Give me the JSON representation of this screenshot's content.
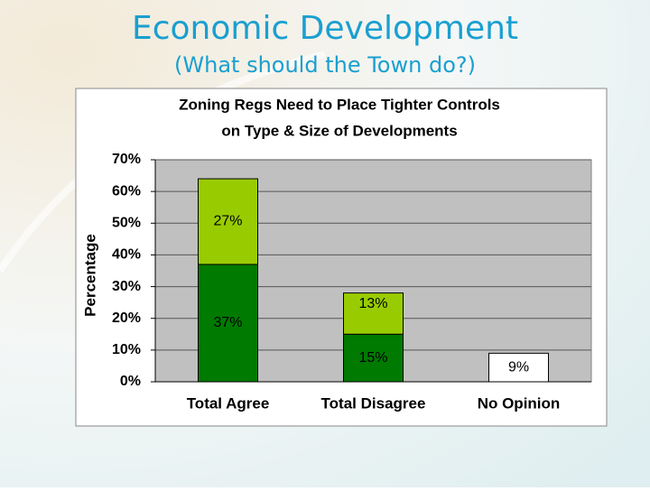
{
  "slide": {
    "title": "Economic Development",
    "subtitle": "(What should the Town do?)"
  },
  "chart_data": {
    "type": "stacked-bar",
    "title": [
      "Zoning Regs Need to Place Tighter Controls",
      "on Type & Size of Developments"
    ],
    "y_label": "Percentage",
    "categories": [
      "Total Agree",
      "Total Disagree",
      "No Opinion"
    ],
    "series": [
      {
        "color": "#007a00",
        "values": [
          37,
          15,
          null
        ],
        "value_labels": [
          "37%",
          "15%",
          null
        ]
      },
      {
        "color": "#99cc00",
        "values": [
          27,
          13,
          null
        ],
        "value_labels": [
          "27%",
          "13%",
          null
        ]
      },
      {
        "color": "#ffffff",
        "values": [
          null,
          null,
          9
        ],
        "value_labels": [
          null,
          null,
          "9%"
        ]
      }
    ],
    "ylim": [
      0,
      70
    ],
    "yticks": [
      {
        "value": 0,
        "label": "0%"
      },
      {
        "value": 10,
        "label": "10%"
      },
      {
        "value": 20,
        "label": "20%"
      },
      {
        "value": 30,
        "label": "30%"
      },
      {
        "value": 40,
        "label": "40%"
      },
      {
        "value": 50,
        "label": "50%"
      },
      {
        "value": 60,
        "label": "60%"
      },
      {
        "value": 70,
        "label": "70%"
      }
    ],
    "grid": true,
    "plot_color": "#c0c0c0"
  }
}
